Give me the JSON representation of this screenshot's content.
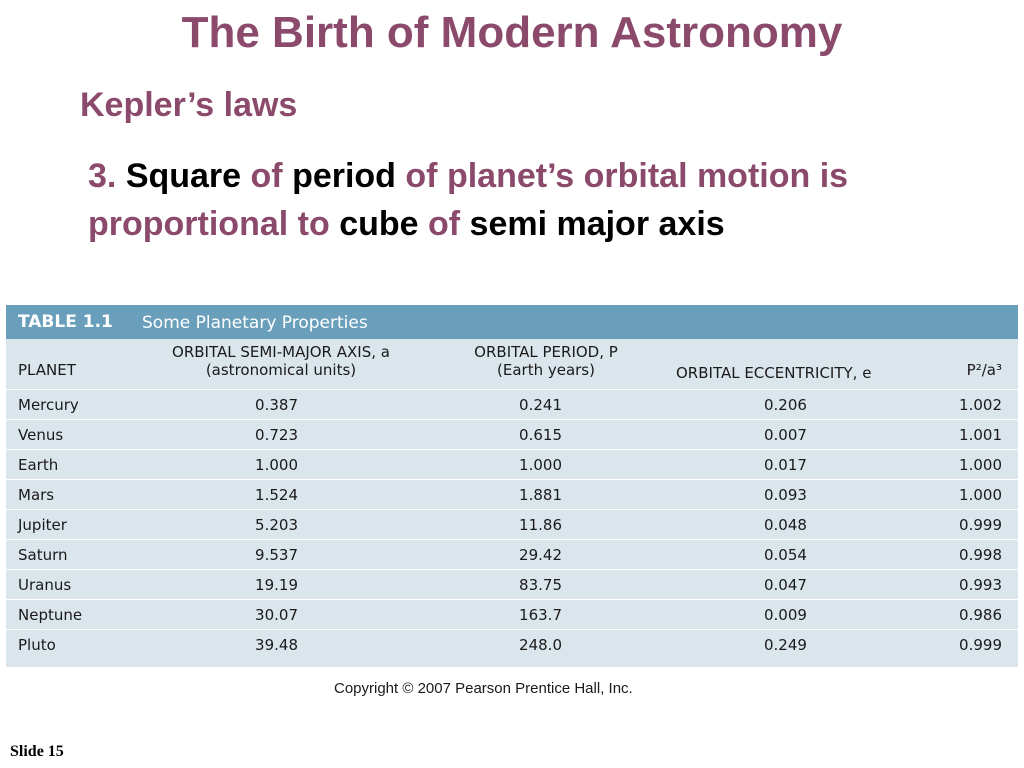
{
  "slide": {
    "title": "The Birth of Modern Astronomy",
    "subtitle": "Kepler’s laws",
    "law": {
      "p1": "3. ",
      "p2": "Square",
      "p3": " of ",
      "p4": "period",
      "p5": " of planet’s orbital motion is proportional to ",
      "p6": "cube",
      "p7": " of ",
      "p8": "semi major axis"
    },
    "copyright": "Copyright © 2007 Pearson Prentice Hall, Inc.",
    "slide_number": "Slide 15"
  },
  "table": {
    "number": "TABLE 1.1",
    "caption": "Some Planetary Properties",
    "headers": {
      "planet": "PLANET",
      "axis_line1": "ORBITAL SEMI-MAJOR AXIS, a",
      "axis_line2": "(astronomical units)",
      "period_line1": "ORBITAL PERIOD, P",
      "period_line2": "(Earth years)",
      "ecc": "ORBITAL ECCENTRICITY, e",
      "ratio": "P²/a³"
    },
    "rows": [
      {
        "planet": "Mercury",
        "axis": "0.387",
        "period": "0.241",
        "ecc": "0.206",
        "ratio": "1.002"
      },
      {
        "planet": "Venus",
        "axis": "0.723",
        "period": "0.615",
        "ecc": "0.007",
        "ratio": "1.001"
      },
      {
        "planet": "Earth",
        "axis": "1.000",
        "period": "1.000",
        "ecc": "0.017",
        "ratio": "1.000"
      },
      {
        "planet": "Mars",
        "axis": "1.524",
        "period": "1.881",
        "ecc": "0.093",
        "ratio": "1.000"
      },
      {
        "planet": "Jupiter",
        "axis": "5.203",
        "period": "11.86",
        "ecc": "0.048",
        "ratio": "0.999"
      },
      {
        "planet": "Saturn",
        "axis": "9.537",
        "period": "29.42",
        "ecc": "0.054",
        "ratio": "0.998"
      },
      {
        "planet": "Uranus",
        "axis": "19.19",
        "period": "83.75",
        "ecc": "0.047",
        "ratio": "0.993"
      },
      {
        "planet": "Neptune",
        "axis": "30.07",
        "period": "163.7",
        "ecc": "0.009",
        "ratio": "0.986"
      },
      {
        "planet": "Pluto",
        "axis": "39.48",
        "period": "248.0",
        "ecc": "0.249",
        "ratio": "0.999"
      }
    ]
  }
}
